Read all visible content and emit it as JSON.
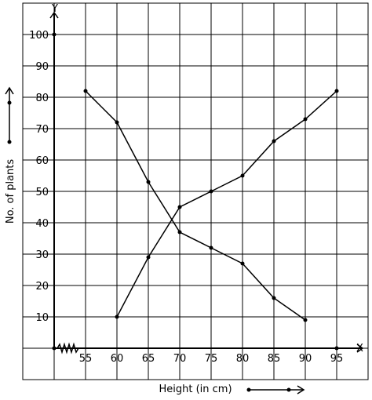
{
  "chart_data": {
    "type": "line",
    "xlabel": "Height (in cm)",
    "ylabel": "No. of plants",
    "x_axis_name": "X",
    "y_axis_name": "Y",
    "x_ticks": [
      55,
      60,
      65,
      70,
      75,
      80,
      85,
      90,
      95
    ],
    "y_ticks": [
      10,
      20,
      30,
      40,
      50,
      60,
      70,
      80,
      90,
      100
    ],
    "xlim": [
      50,
      100
    ],
    "ylim": [
      -10,
      110
    ],
    "grid": true,
    "series": [
      {
        "points": [
          {
            "x": 60,
            "y": 10
          },
          {
            "x": 65,
            "y": 29
          },
          {
            "x": 70,
            "y": 45
          },
          {
            "x": 75,
            "y": 50
          },
          {
            "x": 80,
            "y": 55
          },
          {
            "x": 85,
            "y": 66
          },
          {
            "x": 90,
            "y": 73
          },
          {
            "x": 95,
            "y": 82
          }
        ]
      },
      {
        "points": [
          {
            "x": 55,
            "y": 82
          },
          {
            "x": 60,
            "y": 72
          },
          {
            "x": 65,
            "y": 53
          },
          {
            "x": 70,
            "y": 37
          },
          {
            "x": 75,
            "y": 32
          },
          {
            "x": 80,
            "y": 27
          },
          {
            "x": 85,
            "y": 16
          },
          {
            "x": 90,
            "y": 9
          }
        ]
      }
    ]
  }
}
